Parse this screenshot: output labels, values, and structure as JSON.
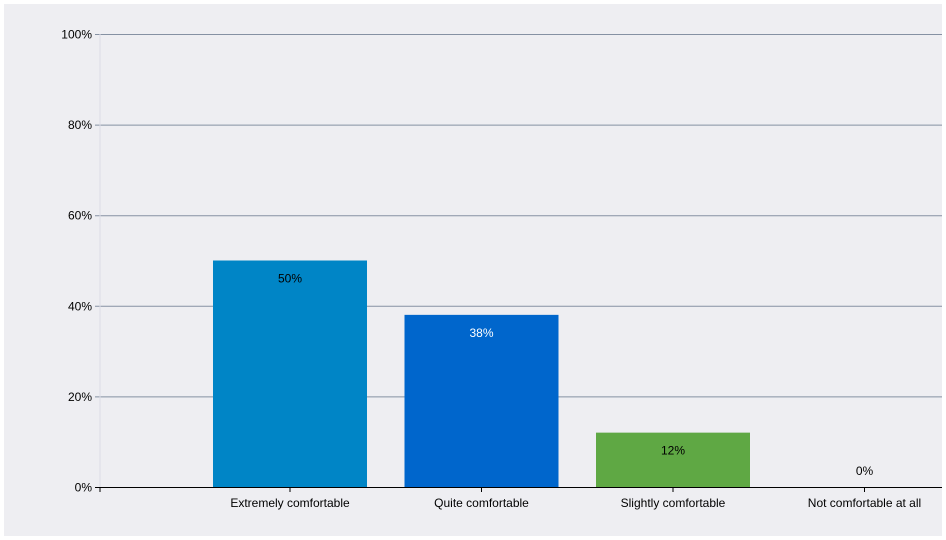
{
  "chart_data": {
    "type": "bar",
    "categories": [
      "Extremely comfortable",
      "Quite comfortable",
      "Slightly comfortable",
      "Not comfortable at all"
    ],
    "values": [
      50,
      38,
      12,
      0
    ],
    "value_labels": [
      "50%",
      "38%",
      "12%",
      "0%"
    ],
    "title": "",
    "xlabel": "",
    "ylabel": "",
    "ylim": [
      0,
      100
    ],
    "yticks": [
      0,
      20,
      40,
      60,
      80,
      100
    ],
    "ytick_labels": [
      "0%",
      "20%",
      "40%",
      "60%",
      "80%",
      "100%"
    ],
    "grid": true,
    "legend": "none",
    "bar_colors": [
      "#0085c6",
      "#0066cc",
      "#5fa844",
      "#5fa844"
    ],
    "label_colors": [
      "#000000",
      "#ffffff",
      "#000000",
      "#000000"
    ],
    "colors": {
      "background": "#eeeef2",
      "gridline": "#8591a3",
      "axis": "#000000"
    }
  }
}
